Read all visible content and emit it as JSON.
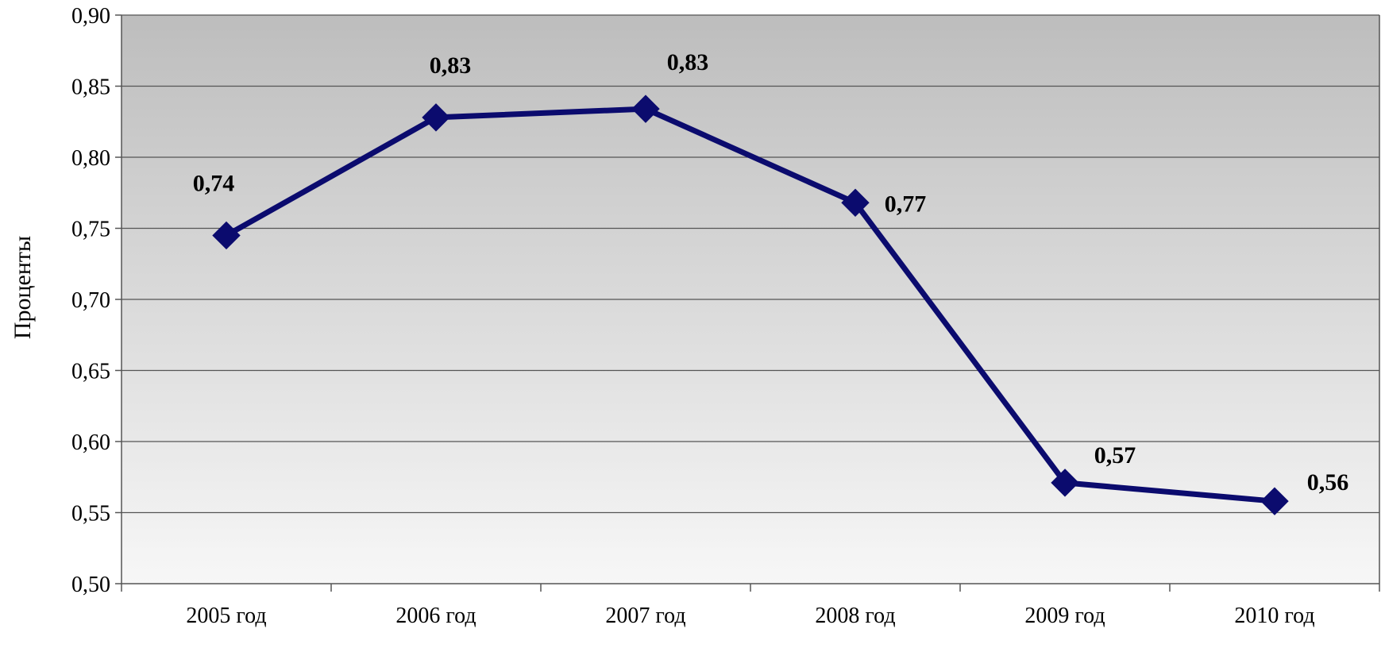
{
  "chart_data": {
    "type": "line",
    "categories": [
      "2005 год",
      "2006 год",
      "2007 год",
      "2008 год",
      "2009 год",
      "2010 год"
    ],
    "values": [
      0.745,
      0.828,
      0.834,
      0.768,
      0.571,
      0.558
    ],
    "data_labels": [
      "0,74",
      "0,83",
      "0,83",
      "0,77",
      "0,57",
      "0,56"
    ],
    "ylabel": "Проценты",
    "xlabel": "",
    "title": "",
    "ylim": [
      0.5,
      0.9
    ],
    "yticks": [
      "0,50",
      "0,55",
      "0,60",
      "0,65",
      "0,70",
      "0,75",
      "0,80",
      "0,85",
      "0,90"
    ],
    "grid": true,
    "legend": "none",
    "colors": {
      "line": "#0b0b6e",
      "background_top": "#bdbdbd",
      "background_bottom": "#f7f7f7",
      "grid": "#555555"
    }
  }
}
